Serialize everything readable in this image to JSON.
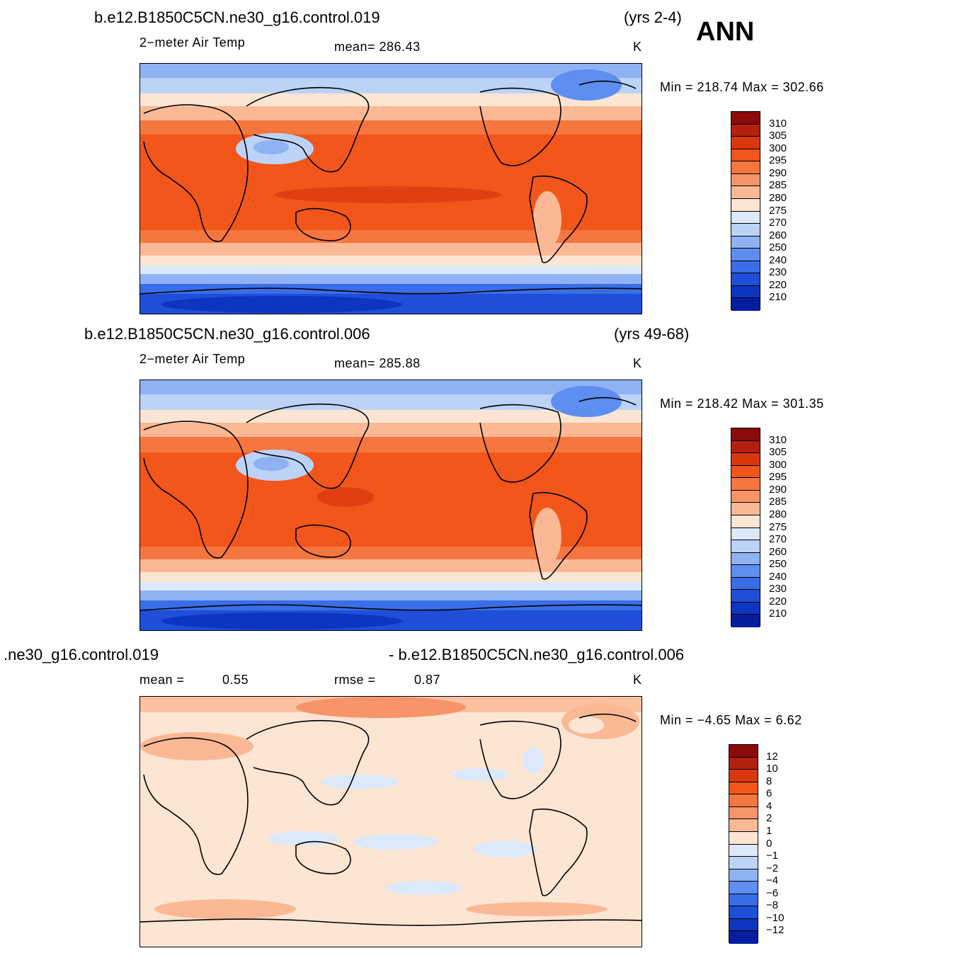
{
  "season": "ANN",
  "panels": [
    {
      "case": "b.e12.B1850C5CN.ne30_g16.control.019",
      "years": "(yrs 2-4)",
      "variable": "2−meter Air Temp",
      "stat_text": "mean=  286.43",
      "units": "K",
      "minmax": "Min  =  218.74  Max  =  302.66"
    },
    {
      "case": "b.e12.B1850C5CN.ne30_g16.control.006",
      "years": "(yrs 49-68)",
      "variable": "2−meter Air Temp",
      "stat_text": "mean=  285.88",
      "units": "K",
      "minmax": "Min  =  218.42  Max  =  301.35"
    },
    {
      "case_left": ".ne30_g16.control.019",
      "case_right": "- b.e12.B1850C5CN.ne30_g16.control.006",
      "mean_label": "mean  =",
      "mean_value": "0.55",
      "rmse_label": "rmse  =",
      "rmse_value": "0.87",
      "units": "K",
      "minmax": "Min  =   −4.65  Max  =       6.62"
    }
  ],
  "colorbar_abs": {
    "labels": [
      "310",
      "305",
      "300",
      "295",
      "290",
      "285",
      "280",
      "275",
      "270",
      "260",
      "250",
      "240",
      "230",
      "220",
      "210"
    ],
    "colors": [
      "#8b0a0a",
      "#b3200d",
      "#d9380e",
      "#f2561a",
      "#f6763f",
      "#f8946a",
      "#fbb895",
      "#fde5d3",
      "#dce9fb",
      "#bcd3f7",
      "#8fb2f3",
      "#5e8ff0",
      "#3a6ee8",
      "#1f4ed8",
      "#0d35bf",
      "#041e9e"
    ]
  },
  "colorbar_diff": {
    "labels": [
      "12",
      "10",
      "8",
      "6",
      "4",
      "2",
      "1",
      "0",
      "−1",
      "−2",
      "−4",
      "−6",
      "−8",
      "−10",
      "−12"
    ],
    "colors": [
      "#8b0a0a",
      "#b3200d",
      "#d9380e",
      "#f2561a",
      "#f6763f",
      "#f8946a",
      "#fbb895",
      "#fde5d3",
      "#dce9fb",
      "#bcd3f7",
      "#8fb2f3",
      "#5e8ff0",
      "#3a6ee8",
      "#1f4ed8",
      "#0d35bf",
      "#041e9e"
    ]
  }
}
